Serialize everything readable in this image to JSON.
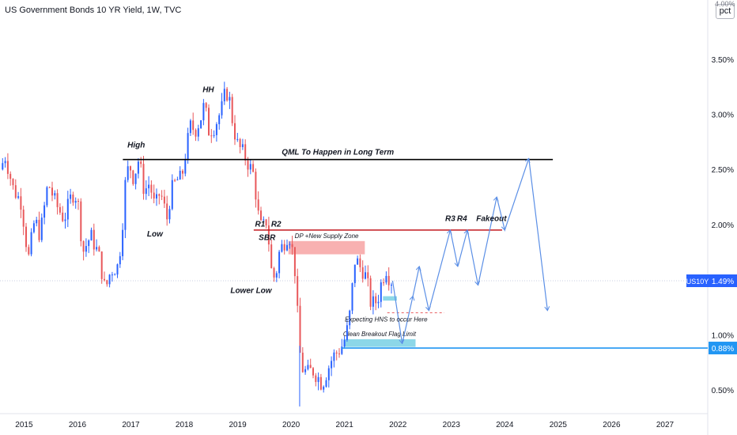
{
  "header": {
    "title": "US Government Bonds 10 YR Yield, 1W, TVC"
  },
  "scale_button": {
    "label": "pct",
    "top_tick": "4.00%"
  },
  "colors": {
    "up": "#2962ff",
    "down": "#e8575a",
    "qml_line": "#000000",
    "resistance_line": "#c2181f",
    "supply_zone": "#f7a8a8",
    "breakout_zone": "#7fd3e6",
    "projection": "#5b8fe6",
    "price_line": "#2196f3",
    "last_price_bg": "#2962ff"
  },
  "chart_data": {
    "type": "candlestick",
    "symbol": "US10Y",
    "interval": "1W",
    "y_axis": {
      "unit": "%",
      "ylim": [
        0.3,
        4.0
      ],
      "ticks": [
        "3.50%",
        "3.00%",
        "2.50%",
        "2.00%",
        "1.50%",
        "1.00%",
        "0.50%"
      ],
      "tick_values": [
        3.5,
        3.0,
        2.5,
        2.0,
        1.5,
        1.0,
        0.5
      ]
    },
    "x_axis": {
      "ticks": [
        "2015",
        "2016",
        "2017",
        "2018",
        "2019",
        "2020",
        "2021",
        "2022",
        "2023",
        "2024",
        "2025",
        "2026",
        "2027"
      ],
      "range": [
        2014.55,
        2027.8
      ]
    },
    "last_price": {
      "symbol": "US10Y",
      "value": "1.49%",
      "numeric": 1.49
    },
    "breakout_level": {
      "value": "0.88%",
      "numeric": 0.88
    },
    "price_path": [
      [
        2014.55,
        2.5
      ],
      [
        2014.65,
        2.62
      ],
      [
        2014.8,
        2.32
      ],
      [
        2014.95,
        2.2
      ],
      [
        2015.08,
        1.68
      ],
      [
        2015.2,
        2.05
      ],
      [
        2015.3,
        1.9
      ],
      [
        2015.45,
        2.38
      ],
      [
        2015.6,
        2.18
      ],
      [
        2015.75,
        2.05
      ],
      [
        2015.9,
        2.28
      ],
      [
        2016.0,
        2.25
      ],
      [
        2016.1,
        1.75
      ],
      [
        2016.25,
        1.9
      ],
      [
        2016.4,
        1.72
      ],
      [
        2016.52,
        1.4
      ],
      [
        2016.62,
        1.58
      ],
      [
        2016.75,
        1.62
      ],
      [
        2016.82,
        1.85
      ],
      [
        2016.9,
        2.4
      ],
      [
        2016.97,
        2.55
      ],
      [
        2017.05,
        2.42
      ],
      [
        2017.15,
        2.6
      ],
      [
        2017.25,
        2.3
      ],
      [
        2017.35,
        2.38
      ],
      [
        2017.45,
        2.15
      ],
      [
        2017.55,
        2.3
      ],
      [
        2017.68,
        2.05
      ],
      [
        2017.75,
        2.3
      ],
      [
        2017.85,
        2.4
      ],
      [
        2017.95,
        2.42
      ],
      [
        2018.05,
        2.72
      ],
      [
        2018.12,
        2.9
      ],
      [
        2018.2,
        2.85
      ],
      [
        2018.3,
        2.95
      ],
      [
        2018.38,
        3.1
      ],
      [
        2018.45,
        2.85
      ],
      [
        2018.55,
        2.88
      ],
      [
        2018.62,
        2.95
      ],
      [
        2018.7,
        3.05
      ],
      [
        2018.78,
        3.22
      ],
      [
        2018.85,
        3.12
      ],
      [
        2018.92,
        2.88
      ],
      [
        2019.0,
        2.72
      ],
      [
        2019.1,
        2.65
      ],
      [
        2019.2,
        2.55
      ],
      [
        2019.3,
        2.45
      ],
      [
        2019.38,
        2.1
      ],
      [
        2019.45,
        1.95
      ],
      [
        2019.55,
        2.05
      ],
      [
        2019.62,
        1.6
      ],
      [
        2019.7,
        1.5
      ],
      [
        2019.78,
        1.75
      ],
      [
        2019.85,
        1.82
      ],
      [
        2019.95,
        1.92
      ],
      [
        2020.0,
        1.85
      ],
      [
        2020.08,
        1.55
      ],
      [
        2020.15,
        0.9
      ],
      [
        2020.2,
        0.7
      ],
      [
        2020.3,
        0.65
      ],
      [
        2020.4,
        0.68
      ],
      [
        2020.5,
        0.62
      ],
      [
        2020.58,
        0.55
      ],
      [
        2020.68,
        0.68
      ],
      [
        2020.78,
        0.8
      ],
      [
        2020.88,
        0.85
      ],
      [
        2020.98,
        0.92
      ],
      [
        2021.08,
        1.1
      ],
      [
        2021.15,
        1.45
      ],
      [
        2021.2,
        1.7
      ],
      [
        2021.28,
        1.62
      ],
      [
        2021.35,
        1.58
      ],
      [
        2021.42,
        1.5
      ],
      [
        2021.48,
        1.3
      ],
      [
        2021.55,
        1.28
      ],
      [
        2021.62,
        1.32
      ],
      [
        2021.7,
        1.5
      ],
      [
        2021.78,
        1.6
      ],
      [
        2021.85,
        1.5
      ],
      [
        2021.9,
        1.49
      ]
    ],
    "horizontal_lines": [
      {
        "label": "QML To Happen in Long Term",
        "value": 2.59,
        "x_start": 2016.85,
        "x_end": 2024.9
      },
      {
        "label": "",
        "value": 1.95,
        "x_start": 2019.3,
        "x_end": 2023.95
      },
      {
        "label": "",
        "value": 0.88,
        "x_start": 2020.95,
        "x_end": 2027.8
      },
      {
        "label": "",
        "value": 1.2,
        "x_start": 2021.8,
        "x_end": 2022.87,
        "dashed": true
      }
    ],
    "zones": [
      {
        "label": "DP +New Supply Zone",
        "x_start": 2019.95,
        "x_end": 2021.38,
        "y_low": 1.73,
        "y_high": 1.85
      },
      {
        "label": "Clean Breakout Flag Limit",
        "x_start": 2020.98,
        "x_end": 2022.33,
        "y_low": 0.89,
        "y_high": 0.96
      },
      {
        "label": "",
        "x_start": 2021.72,
        "x_end": 2021.98,
        "y_low": 1.31,
        "y_high": 1.35
      }
    ],
    "projection_path": [
      [
        2021.9,
        1.49
      ],
      [
        2022.08,
        0.92
      ],
      [
        2022.28,
        1.35
      ],
      [
        2022.4,
        1.62
      ],
      [
        2022.58,
        1.22
      ],
      [
        2022.98,
        1.95
      ],
      [
        2023.12,
        1.62
      ],
      [
        2023.3,
        1.95
      ],
      [
        2023.5,
        1.45
      ],
      [
        2023.85,
        2.25
      ],
      [
        2024.0,
        1.95
      ],
      [
        2024.45,
        2.6
      ],
      [
        2024.8,
        1.22
      ]
    ],
    "annotations": [
      {
        "text": "HH",
        "x": 2018.45,
        "y": 3.2,
        "style": "bold-italic"
      },
      {
        "text": "High",
        "x": 2017.1,
        "y": 2.7,
        "style": "bold-italic"
      },
      {
        "text": "Low",
        "x": 2017.45,
        "y": 1.89,
        "style": "bold-italic"
      },
      {
        "text": "R1",
        "x": 2019.42,
        "y": 1.98,
        "style": "bold-italic"
      },
      {
        "text": "R2",
        "x": 2019.72,
        "y": 1.98,
        "style": "bold-italic"
      },
      {
        "text": "SBR",
        "x": 2019.55,
        "y": 1.86,
        "style": "bold-italic"
      },
      {
        "text": "Lower Low",
        "x": 2019.25,
        "y": 1.38,
        "style": "bold-italic"
      },
      {
        "text": "R3",
        "x": 2022.98,
        "y": 2.03,
        "style": "bold-italic"
      },
      {
        "text": "R4",
        "x": 2023.2,
        "y": 2.03,
        "style": "bold-italic"
      },
      {
        "text": "Fakeout",
        "x": 2023.75,
        "y": 2.03,
        "style": "bold-italic"
      },
      {
        "text": "Expecting HNS to occur Here",
        "x": 2021.78,
        "y": 1.12,
        "style": "italic"
      }
    ]
  }
}
